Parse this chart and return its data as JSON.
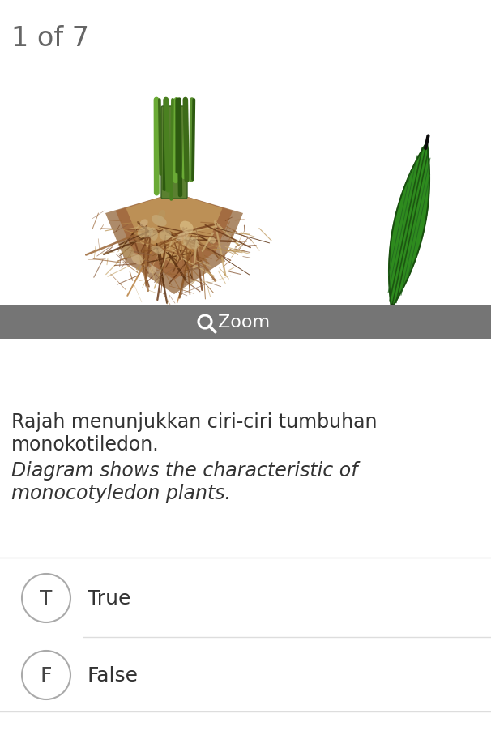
{
  "title": "1 of 7",
  "title_fontsize": 24,
  "title_color": "#666666",
  "bg_color": "#ffffff",
  "zoom_bar_color": "#757575",
  "zoom_bar_text": "Zoom",
  "zoom_bar_text_color": "#ffffff",
  "text_line1": "Rajah menunjukkan ciri-ciri tumbuhan",
  "text_line2": "monokotiledon.",
  "text_line3_italic": "Diagram shows the characteristic of",
  "text_line4_italic": "monocotyledon plants.",
  "text_color": "#333333",
  "text_fontsize": 17,
  "option_T_label": "T",
  "option_T_text": "True",
  "option_F_label": "F",
  "option_F_text": "False",
  "option_circle_edgecolor": "#aaaaaa",
  "option_label_color": "#444444",
  "option_text_color": "#333333",
  "option_fontsize": 18,
  "option_label_fontsize": 18,
  "divider_color": "#dddddd"
}
